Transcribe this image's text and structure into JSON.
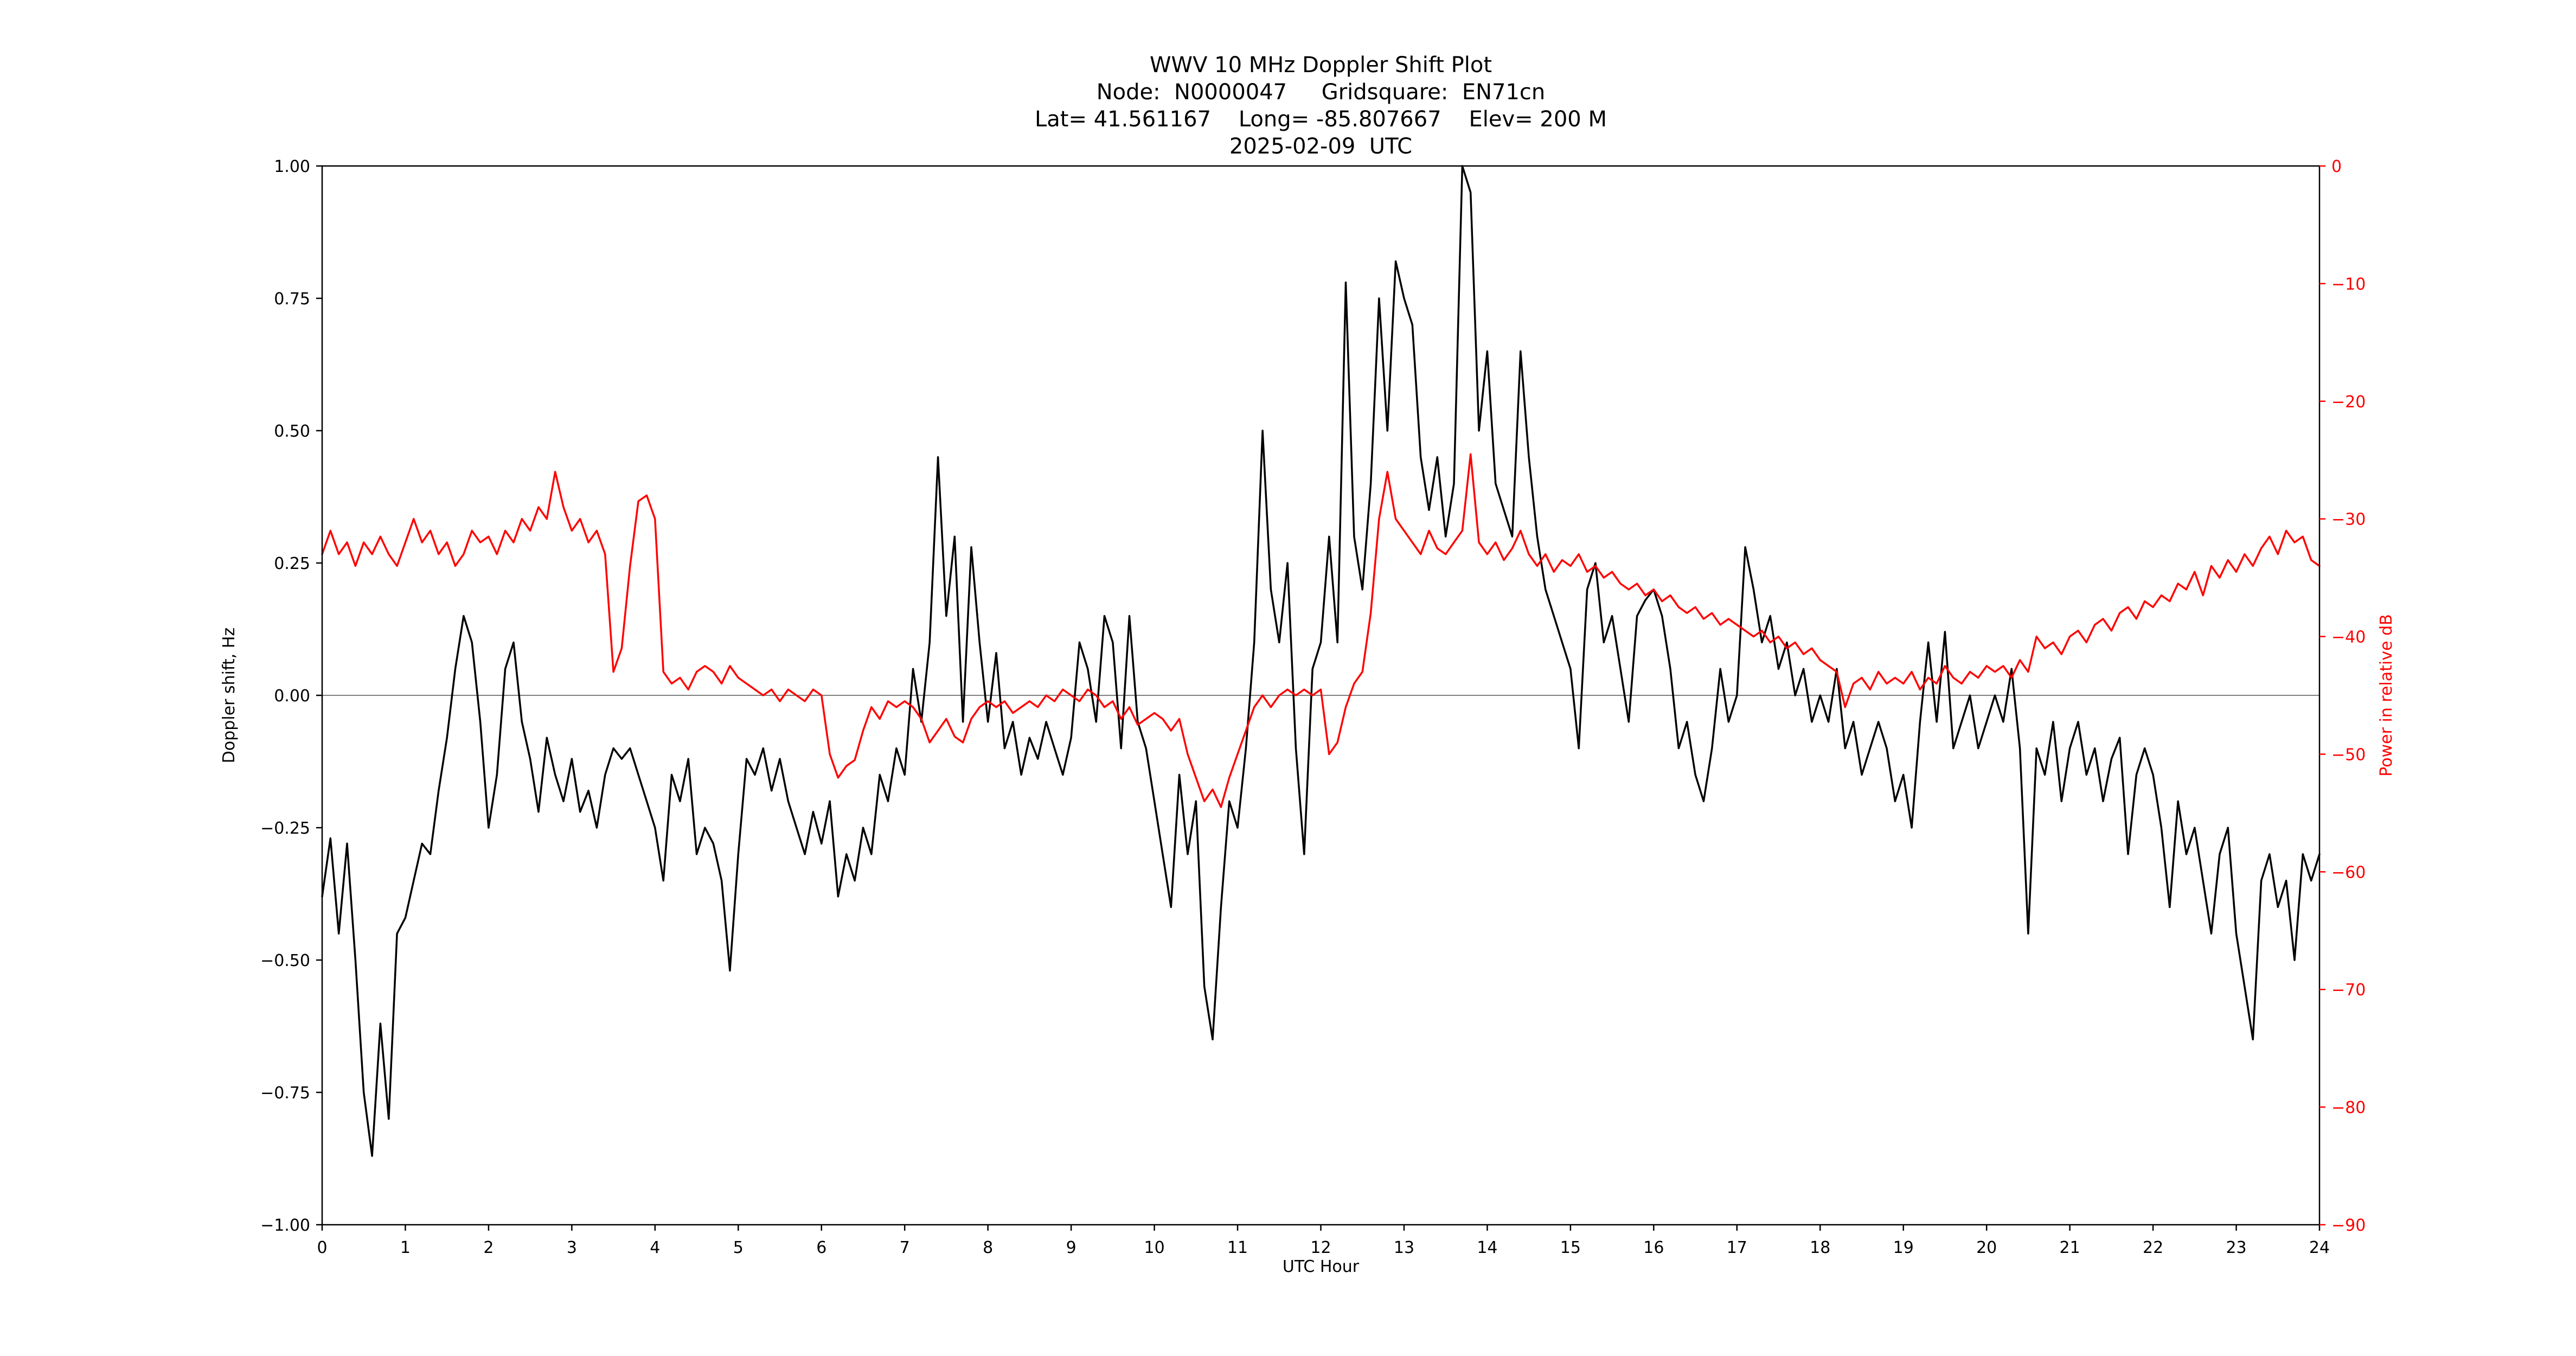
{
  "figure": {
    "background": "#ffffff"
  },
  "chart_data": {
    "type": "line",
    "title_lines": [
      "WWV 10 MHz Doppler Shift Plot",
      "Node:  N0000047     Gridsquare:  EN71cn",
      "Lat= 41.561167    Long= -85.807667    Elev= 200 M",
      "2025-02-09  UTC"
    ],
    "xlabel": "UTC Hour",
    "ylabel_left": "Doppler shift, Hz",
    "ylabel_right": "Power in relative dB",
    "x_range": [
      0,
      24
    ],
    "x_tick_step": 1,
    "y_left_range": [
      -1.0,
      1.0
    ],
    "y_left_ticks": [
      1.0,
      0.75,
      0.5,
      0.25,
      0.0,
      -0.25,
      -0.5,
      -0.75,
      -1.0
    ],
    "y_right_range": [
      -90,
      0
    ],
    "y_right_ticks": [
      0,
      -10,
      -20,
      -30,
      -40,
      -50,
      -60,
      -70,
      -80,
      -90
    ],
    "grid": false,
    "zero_line": true,
    "zero_line_color": "#7f7f7f",
    "axis_color": "#000000",
    "right_axis_color": "#ff0000",
    "legend": "none",
    "x_start": 0,
    "x_step": 0.1,
    "series": [
      {
        "name": "Doppler shift",
        "data_name": "doppler-series-line",
        "axis": "left",
        "color": "#000000",
        "values": [
          -0.38,
          -0.27,
          -0.45,
          -0.28,
          -0.5,
          -0.75,
          -0.87,
          -0.62,
          -0.8,
          -0.45,
          -0.42,
          -0.35,
          -0.28,
          -0.3,
          -0.18,
          -0.08,
          0.05,
          0.15,
          0.1,
          -0.05,
          -0.25,
          -0.15,
          0.05,
          0.1,
          -0.05,
          -0.12,
          -0.22,
          -0.08,
          -0.15,
          -0.2,
          -0.12,
          -0.22,
          -0.18,
          -0.25,
          -0.15,
          -0.1,
          -0.12,
          -0.1,
          -0.15,
          -0.2,
          -0.25,
          -0.35,
          -0.15,
          -0.2,
          -0.12,
          -0.3,
          -0.25,
          -0.28,
          -0.35,
          -0.52,
          -0.3,
          -0.12,
          -0.15,
          -0.1,
          -0.18,
          -0.12,
          -0.2,
          -0.25,
          -0.3,
          -0.22,
          -0.28,
          -0.2,
          -0.38,
          -0.3,
          -0.35,
          -0.25,
          -0.3,
          -0.15,
          -0.2,
          -0.1,
          -0.15,
          0.05,
          -0.05,
          0.1,
          0.45,
          0.15,
          0.3,
          -0.05,
          0.28,
          0.1,
          -0.05,
          0.08,
          -0.1,
          -0.05,
          -0.15,
          -0.08,
          -0.12,
          -0.05,
          -0.1,
          -0.15,
          -0.08,
          0.1,
          0.05,
          -0.05,
          0.15,
          0.1,
          -0.1,
          0.15,
          -0.05,
          -0.1,
          -0.2,
          -0.3,
          -0.4,
          -0.15,
          -0.3,
          -0.2,
          -0.55,
          -0.65,
          -0.4,
          -0.2,
          -0.25,
          -0.1,
          0.1,
          0.5,
          0.2,
          0.1,
          0.25,
          -0.1,
          -0.3,
          0.05,
          0.1,
          0.3,
          0.1,
          0.78,
          0.3,
          0.2,
          0.4,
          0.75,
          0.5,
          0.82,
          0.75,
          0.7,
          0.45,
          0.35,
          0.45,
          0.3,
          0.4,
          1.0,
          0.95,
          0.5,
          0.65,
          0.4,
          0.35,
          0.3,
          0.65,
          0.45,
          0.3,
          0.2,
          0.15,
          0.1,
          0.05,
          -0.1,
          0.2,
          0.25,
          0.1,
          0.15,
          0.05,
          -0.05,
          0.15,
          0.18,
          0.2,
          0.15,
          0.05,
          -0.1,
          -0.05,
          -0.15,
          -0.2,
          -0.1,
          0.05,
          -0.05,
          0.0,
          0.28,
          0.2,
          0.1,
          0.15,
          0.05,
          0.1,
          0.0,
          0.05,
          -0.05,
          0.0,
          -0.05,
          0.05,
          -0.1,
          -0.05,
          -0.15,
          -0.1,
          -0.05,
          -0.1,
          -0.2,
          -0.15,
          -0.25,
          -0.05,
          0.1,
          -0.05,
          0.12,
          -0.1,
          -0.05,
          0.0,
          -0.1,
          -0.05,
          0.0,
          -0.05,
          0.05,
          -0.1,
          -0.45,
          -0.1,
          -0.15,
          -0.05,
          -0.2,
          -0.1,
          -0.05,
          -0.15,
          -0.1,
          -0.2,
          -0.12,
          -0.08,
          -0.3,
          -0.15,
          -0.1,
          -0.15,
          -0.25,
          -0.4,
          -0.2,
          -0.3,
          -0.25,
          -0.35,
          -0.45,
          -0.3,
          -0.25,
          -0.45,
          -0.55,
          -0.65,
          -0.35,
          -0.3,
          -0.4,
          -0.35,
          -0.5,
          -0.3,
          -0.35,
          -0.3
        ]
      },
      {
        "name": "Power in relative dB",
        "data_name": "power-series-line",
        "axis": "right",
        "color": "#ff0000",
        "values": [
          -33,
          -31,
          -33,
          -32,
          -34,
          -32,
          -33,
          -31.5,
          -33,
          -34,
          -32,
          -30,
          -32,
          -31,
          -33,
          -32,
          -34,
          -33,
          -31,
          -32,
          -31.5,
          -33,
          -31,
          -32,
          -30,
          -31,
          -29,
          -30,
          -26,
          -29,
          -31,
          -30,
          -32,
          -31,
          -33,
          -43,
          -41,
          -34,
          -28.5,
          -28,
          -30,
          -43,
          -44,
          -43.5,
          -44.5,
          -43,
          -42.5,
          -43,
          -44,
          -42.5,
          -43.5,
          -44,
          -44.5,
          -45,
          -44.5,
          -45.5,
          -44.5,
          -45,
          -45.5,
          -44.5,
          -45,
          -50,
          -52,
          -51,
          -50.5,
          -48,
          -46,
          -47,
          -45.5,
          -46,
          -45.5,
          -46,
          -47,
          -49,
          -48,
          -47,
          -48.5,
          -49,
          -47,
          -46,
          -45.5,
          -46,
          -45.5,
          -46.5,
          -46,
          -45.5,
          -46,
          -45,
          -45.5,
          -44.5,
          -45,
          -45.5,
          -44.5,
          -45,
          -46,
          -45.5,
          -47,
          -46,
          -47.5,
          -47,
          -46.5,
          -47,
          -48,
          -47,
          -50,
          -52,
          -54,
          -53,
          -54.5,
          -52,
          -50,
          -48,
          -46,
          -45,
          -46,
          -45,
          -44.5,
          -45,
          -44.5,
          -45,
          -44.5,
          -50,
          -49,
          -46,
          -44,
          -43,
          -38,
          -30,
          -26,
          -30,
          -31,
          -32,
          -33,
          -31,
          -32.5,
          -33,
          -32,
          -31,
          -24.5,
          -32,
          -33,
          -32,
          -33.5,
          -32.5,
          -31,
          -33,
          -34,
          -33,
          -34.5,
          -33.5,
          -34,
          -33,
          -34.5,
          -34,
          -35,
          -34.5,
          -35.5,
          -36,
          -35.5,
          -36.5,
          -36,
          -37,
          -36.5,
          -37.5,
          -38,
          -37.5,
          -38.5,
          -38,
          -39,
          -38.5,
          -39,
          -39.5,
          -40,
          -39.5,
          -40.5,
          -40,
          -41,
          -40.5,
          -41.5,
          -41,
          -42,
          -42.5,
          -43,
          -46,
          -44,
          -43.5,
          -44.5,
          -43,
          -44,
          -43.5,
          -44,
          -43,
          -44.5,
          -43.5,
          -44,
          -42.5,
          -43.5,
          -44,
          -43,
          -43.5,
          -42.5,
          -43,
          -42.5,
          -43.5,
          -42,
          -43,
          -40,
          -41,
          -40.5,
          -41.5,
          -40,
          -39.5,
          -40.5,
          -39,
          -38.5,
          -39.5,
          -38,
          -37.5,
          -38.5,
          -37,
          -37.5,
          -36.5,
          -37,
          -35.5,
          -36,
          -34.5,
          -36.5,
          -34,
          -35,
          -33.5,
          -34.5,
          -33,
          -34,
          -32.5,
          -31.5,
          -33,
          -31,
          -32,
          -31.5,
          -33.5,
          -34
        ]
      }
    ]
  }
}
